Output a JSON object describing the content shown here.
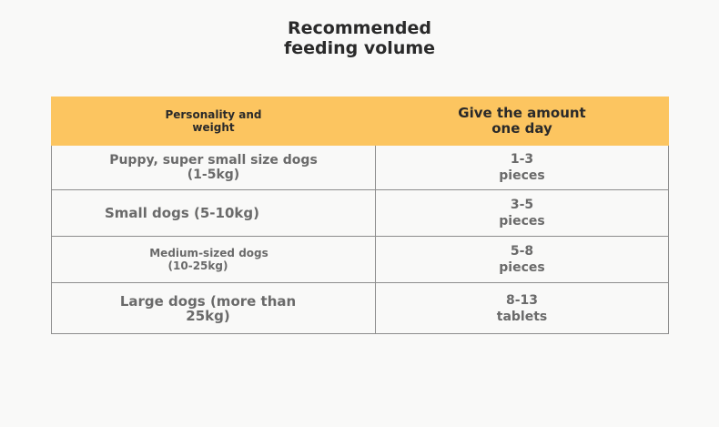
{
  "title": {
    "line1": "Recommended",
    "line2": "feeding volume"
  },
  "table": {
    "header": {
      "col1": [
        "Personality and",
        "weight"
      ],
      "col2": [
        "Give the amount",
        "one day"
      ]
    },
    "rows": [
      {
        "label": [
          "Puppy, super small size dogs",
          "(1-5kg)"
        ],
        "amount": [
          "1-3",
          "pieces"
        ]
      },
      {
        "label": [
          "Small dogs (5-10kg)"
        ],
        "amount": [
          "3-5",
          "pieces"
        ]
      },
      {
        "label": [
          "Medium-sized dogs",
          "(10-25kg)"
        ],
        "amount": [
          "5-8",
          "pieces"
        ]
      },
      {
        "label": [
          "Large dogs (more than",
          "25kg)"
        ],
        "amount": [
          "8-13",
          "tablets"
        ]
      }
    ]
  },
  "colors": {
    "header_bg": "#fcc560",
    "page_bg": "#f9f9f8",
    "border": "#8d8d8d",
    "text_dark": "#2a2a2a",
    "text_gray": "#6a6a6a"
  }
}
